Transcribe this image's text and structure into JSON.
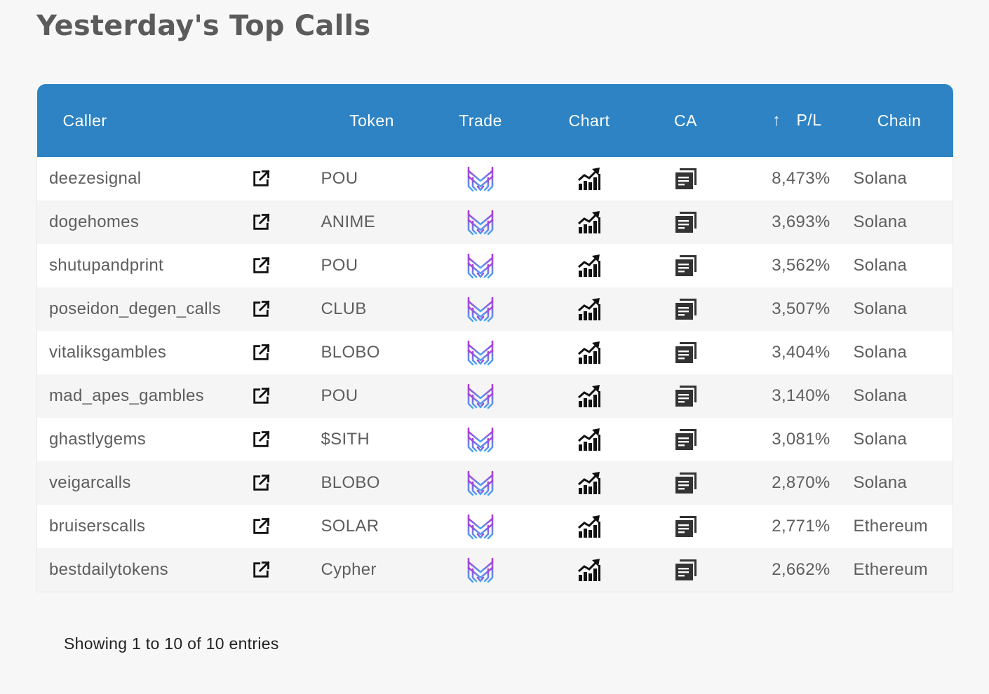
{
  "page": {
    "title": "Yesterday's Top Calls"
  },
  "table": {
    "columns": {
      "caller": "Caller",
      "token": "Token",
      "trade": "Trade",
      "chart": "Chart",
      "ca": "CA",
      "pl": "P/L",
      "chain": "Chain"
    },
    "sort_indicator": "↑",
    "icons": {
      "link": "external-link-icon",
      "trade": "trade-logo-icon",
      "chart": "bar-chart-trend-icon",
      "ca": "copy-document-icon"
    },
    "colors": {
      "header_bg": "#2d83c3",
      "trade_logo_top": "#b03ad8",
      "trade_logo_bottom": "#4aa8f2"
    },
    "rows": [
      {
        "caller": "deezesignal",
        "token": "POU",
        "pl": "8,473%",
        "chain": "Solana"
      },
      {
        "caller": "dogehomes",
        "token": "ANIME",
        "pl": "3,693%",
        "chain": "Solana"
      },
      {
        "caller": "shutupandprint",
        "token": "POU",
        "pl": "3,562%",
        "chain": "Solana"
      },
      {
        "caller": "poseidon_degen_calls",
        "token": "CLUB",
        "pl": "3,507%",
        "chain": "Solana"
      },
      {
        "caller": "vitaliksgambles",
        "token": "BLOBO",
        "pl": "3,404%",
        "chain": "Solana"
      },
      {
        "caller": "mad_apes_gambles",
        "token": "POU",
        "pl": "3,140%",
        "chain": "Solana"
      },
      {
        "caller": "ghastlygems",
        "token": "$SITH",
        "pl": "3,081%",
        "chain": "Solana"
      },
      {
        "caller": "veigarcalls",
        "token": "BLOBO",
        "pl": "2,870%",
        "chain": "Solana"
      },
      {
        "caller": "bruiserscalls",
        "token": "SOLAR",
        "pl": "2,771%",
        "chain": "Ethereum"
      },
      {
        "caller": "bestdailytokens",
        "token": "Cypher",
        "pl": "2,662%",
        "chain": "Ethereum"
      }
    ]
  },
  "footer": {
    "info": "Showing 1 to 10 of 10 entries"
  }
}
